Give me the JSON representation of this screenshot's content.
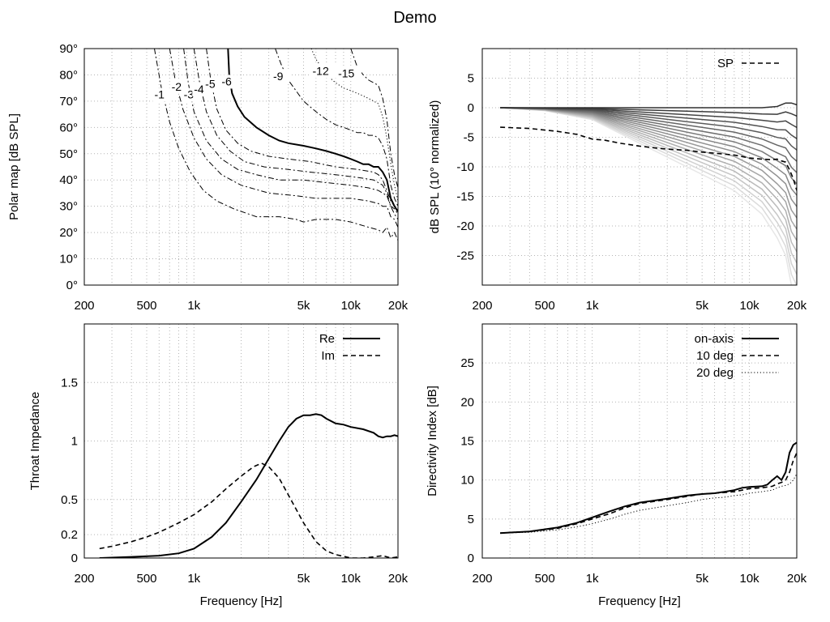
{
  "title": "Demo",
  "chart_data": [
    {
      "type": "line",
      "panel": "polar-map",
      "title": "",
      "xlabel": "",
      "ylabel": "Polar map [dB SPL]",
      "xscale": "log",
      "xlim": [
        200,
        20000
      ],
      "ylim": [
        0,
        90
      ],
      "xtick_values": [
        200,
        500,
        1000,
        5000,
        10000,
        20000
      ],
      "xtick_labels": [
        "200",
        "500",
        "1k",
        "5k",
        "10k",
        "20k"
      ],
      "ytick_values": [
        0,
        10,
        20,
        30,
        40,
        50,
        60,
        70,
        80,
        90
      ],
      "ytick_labels": [
        "0°",
        "10°",
        "20°",
        "30°",
        "40°",
        "50°",
        "60°",
        "70°",
        "80°",
        "90°"
      ],
      "grid": true,
      "series": [
        {
          "name": "-1",
          "style": "dash-dot",
          "x": [
            560,
            620,
            700,
            800,
            950,
            1150,
            1400,
            1800,
            2500,
            3500,
            4500,
            5000,
            6000,
            8000,
            10000,
            13000,
            15000,
            16000,
            17000,
            18000,
            19000,
            20000
          ],
          "y": [
            90,
            75,
            62,
            52,
            43,
            36,
            32,
            29,
            26,
            26,
            25,
            24,
            25,
            25,
            24,
            22,
            21,
            20,
            22,
            18,
            20,
            17
          ]
        },
        {
          "name": "-2",
          "style": "dash-dot",
          "x": [
            700,
            760,
            850,
            1000,
            1200,
            1500,
            2000,
            3000,
            4500,
            6000,
            8000,
            10000,
            13000,
            15000,
            16000,
            17000,
            18000,
            19000,
            20000
          ],
          "y": [
            90,
            78,
            67,
            56,
            48,
            42,
            38,
            35,
            34,
            33,
            33,
            33,
            32,
            31,
            30,
            30,
            26,
            25,
            22
          ]
        },
        {
          "name": "-3",
          "style": "dash-dot",
          "x": [
            860,
            920,
            1000,
            1200,
            1500,
            1900,
            2500,
            3500,
            5000,
            7000,
            10000,
            13000,
            15000,
            16000,
            17000,
            18000,
            19000,
            20000
          ],
          "y": [
            90,
            77,
            66,
            55,
            48,
            44,
            42,
            40,
            40,
            39,
            38,
            37,
            36,
            35,
            34,
            30,
            27,
            25
          ]
        },
        {
          "name": "-4",
          "style": "dash-dot",
          "x": [
            1000,
            1080,
            1200,
            1400,
            1700,
            2100,
            2800,
            4000,
            5500,
            8000,
            11000,
            14000,
            15000,
            16000,
            17000,
            18000,
            19000,
            20000
          ],
          "y": [
            90,
            78,
            66,
            57,
            51,
            47,
            45,
            44,
            43,
            42,
            41,
            40,
            39,
            38,
            35,
            30,
            29,
            27
          ]
        },
        {
          "name": "-5",
          "style": "dash-dot",
          "x": [
            1200,
            1280,
            1400,
            1600,
            1900,
            2300,
            3000,
            4000,
            5500,
            8000,
            11000,
            14000,
            15000,
            16000,
            17000,
            18000,
            19000,
            20000
          ],
          "y": [
            90,
            78,
            67,
            59,
            54,
            51,
            49,
            48,
            47,
            45,
            44,
            43,
            42,
            40,
            36,
            32,
            30,
            28
          ]
        },
        {
          "name": "-6",
          "style": "solid",
          "x": [
            1650,
            1680,
            1750,
            1900,
            2100,
            2500,
            3000,
            3500,
            4000,
            5000,
            6000,
            7000,
            8000,
            9000,
            10000,
            11000,
            12000,
            13000,
            14000,
            15000,
            16000,
            17000,
            18000,
            19000,
            20000
          ],
          "y": [
            90,
            80,
            73,
            68,
            64,
            60,
            57,
            55,
            54,
            53,
            52,
            51,
            50,
            49,
            48,
            47,
            46,
            46,
            45,
            45,
            43,
            40,
            33,
            30,
            28
          ]
        },
        {
          "name": "-9",
          "style": "dash-dot",
          "x": [
            3300,
            3600,
            4000,
            5000,
            6000,
            7000,
            8000,
            9000,
            10000,
            11000,
            12000,
            13000,
            14000,
            15000,
            16000,
            17000,
            18000,
            19000,
            20000
          ],
          "y": [
            90,
            84,
            78,
            70,
            66,
            63,
            61,
            60,
            59,
            58,
            58,
            57,
            57,
            56,
            53,
            48,
            38,
            33,
            30
          ]
        },
        {
          "name": "-12",
          "style": "dotted",
          "x": [
            5600,
            6000,
            7000,
            8000,
            9000,
            10000,
            11000,
            12000,
            13000,
            14000,
            15000,
            16000,
            17000,
            18000,
            19000,
            20000
          ],
          "y": [
            90,
            86,
            80,
            77,
            75,
            74,
            73,
            72,
            71,
            70,
            69,
            64,
            56,
            46,
            38,
            32
          ]
        },
        {
          "name": "-15",
          "style": "dash-dot",
          "x": [
            10000,
            11000,
            12000,
            13000,
            14000,
            15000,
            16000,
            17000,
            18000,
            19000,
            20000
          ],
          "y": [
            90,
            83,
            80,
            78,
            77,
            76,
            71,
            63,
            50,
            42,
            37
          ]
        }
      ],
      "contour_labels": [
        {
          "text": "-1",
          "x": 560,
          "y": 71
        },
        {
          "text": "-2",
          "x": 720,
          "y": 74
        },
        {
          "text": "-3",
          "x": 860,
          "y": 71
        },
        {
          "text": "-4",
          "x": 1000,
          "y": 73
        },
        {
          "text": "-5",
          "x": 1180,
          "y": 75
        },
        {
          "text": "-6",
          "x": 1500,
          "y": 76
        },
        {
          "text": "-9",
          "x": 3200,
          "y": 78
        },
        {
          "text": "-12",
          "x": 5700,
          "y": 80
        },
        {
          "text": "-15",
          "x": 8300,
          "y": 79
        }
      ]
    },
    {
      "type": "line",
      "panel": "normalized-spl",
      "title": "",
      "xlabel": "",
      "ylabel": "dB SPL (10° normalized)",
      "xscale": "log",
      "xlim": [
        200,
        20000
      ],
      "ylim": [
        -30,
        10
      ],
      "xtick_values": [
        200,
        500,
        1000,
        5000,
        10000,
        20000
      ],
      "xtick_labels": [
        "200",
        "500",
        "1k",
        "5k",
        "10k",
        "20k"
      ],
      "ytick_values": [
        5,
        0,
        -5,
        -10,
        -15,
        -20,
        -25
      ],
      "ytick_labels": [
        "5",
        "0",
        "-5",
        "-10",
        "-15",
        "-20",
        "-25"
      ],
      "grid": true,
      "legend": {
        "position": "top-right",
        "entries": [
          "SP"
        ]
      },
      "angle_curves": {
        "count": 18,
        "gray_dark": "#303030",
        "gray_light": "#e6e6e6",
        "x": [
          260,
          500,
          1000,
          2000,
          4000,
          8000,
          12000,
          15000,
          17000,
          18500,
          20000
        ],
        "y_first": [
          0,
          0,
          0,
          0,
          0,
          0,
          0,
          0.2,
          0.8,
          0.8,
          0.5
        ],
        "y_last": [
          0,
          -0.5,
          -2,
          -6,
          -10,
          -14,
          -18,
          -22,
          -25,
          -30,
          -32
        ]
      },
      "series": [
        {
          "name": "SP",
          "style": "dashed",
          "color": "#000000",
          "x": [
            260,
            400,
            600,
            800,
            1000,
            1200,
            1500,
            2000,
            2500,
            3000,
            4000,
            5000,
            6000,
            8000,
            10000,
            12000,
            14000,
            15000,
            16000,
            17000,
            18000,
            19000,
            20000
          ],
          "y": [
            -3.3,
            -3.5,
            -4,
            -4.5,
            -5.3,
            -5.5,
            -6,
            -6.5,
            -6.8,
            -7,
            -7.2,
            -7.5,
            -7.7,
            -8,
            -8.5,
            -8.7,
            -8.8,
            -8.7,
            -9,
            -9.2,
            -10.5,
            -12,
            -14
          ]
        }
      ]
    },
    {
      "type": "line",
      "panel": "throat-impedance",
      "title": "",
      "xlabel": "Frequency [Hz]",
      "ylabel": "Throat Impedance",
      "xscale": "log",
      "xlim": [
        200,
        20000
      ],
      "ylim": [
        0,
        2
      ],
      "xtick_values": [
        200,
        500,
        1000,
        5000,
        10000,
        20000
      ],
      "xtick_labels": [
        "200",
        "500",
        "1k",
        "5k",
        "10k",
        "20k"
      ],
      "ytick_values": [
        0,
        0.2,
        0.5,
        1,
        1.5
      ],
      "ytick_labels": [
        "0",
        "0.2",
        "0.5",
        "1",
        "1.5"
      ],
      "grid": true,
      "legend": {
        "position": "top-right",
        "entries": [
          "Re",
          "Im"
        ]
      },
      "series": [
        {
          "name": "Re",
          "style": "solid",
          "x": [
            250,
            400,
            600,
            800,
            1000,
            1300,
            1600,
            2000,
            2500,
            3000,
            3500,
            4000,
            4500,
            5000,
            5500,
            6000,
            6500,
            7000,
            8000,
            9000,
            10000,
            12000,
            14000,
            15000,
            16000,
            17000,
            18000,
            19000,
            20000
          ],
          "y": [
            0,
            0.01,
            0.02,
            0.04,
            0.08,
            0.18,
            0.3,
            0.48,
            0.67,
            0.85,
            1.0,
            1.12,
            1.19,
            1.22,
            1.22,
            1.23,
            1.22,
            1.19,
            1.15,
            1.14,
            1.12,
            1.1,
            1.07,
            1.04,
            1.03,
            1.04,
            1.04,
            1.05,
            1.04
          ]
        },
        {
          "name": "Im",
          "style": "dashed",
          "x": [
            250,
            300,
            400,
            500,
            600,
            800,
            1000,
            1300,
            1600,
            2000,
            2400,
            2700,
            3000,
            3500,
            4000,
            5000,
            6000,
            7000,
            8000,
            10000,
            12000,
            14000,
            16000,
            18000,
            20000
          ],
          "y": [
            0.08,
            0.1,
            0.14,
            0.18,
            0.22,
            0.3,
            0.37,
            0.48,
            0.59,
            0.7,
            0.78,
            0.81,
            0.78,
            0.68,
            0.54,
            0.3,
            0.14,
            0.06,
            0.03,
            0.0,
            0.0,
            0.01,
            0.02,
            0.0,
            0.01
          ]
        }
      ]
    },
    {
      "type": "line",
      "panel": "directivity-index",
      "title": "",
      "xlabel": "Frequency [Hz]",
      "ylabel": "Directivity Index [dB]",
      "xscale": "log",
      "xlim": [
        200,
        20000
      ],
      "ylim": [
        0,
        30
      ],
      "xtick_values": [
        200,
        500,
        1000,
        5000,
        10000,
        20000
      ],
      "xtick_labels": [
        "200",
        "500",
        "1k",
        "5k",
        "10k",
        "20k"
      ],
      "ytick_values": [
        0,
        5,
        10,
        15,
        20,
        25
      ],
      "ytick_labels": [
        "0",
        "5",
        "10",
        "15",
        "20",
        "25"
      ],
      "grid": true,
      "legend": {
        "position": "top-right",
        "entries": [
          "on-axis",
          "10 deg",
          "20 deg"
        ]
      },
      "series": [
        {
          "name": "on-axis",
          "style": "solid",
          "x": [
            260,
            400,
            600,
            800,
            1000,
            1300,
            1600,
            2000,
            3000,
            4000,
            5000,
            6000,
            7000,
            8000,
            9000,
            10000,
            12000,
            13000,
            14000,
            15000,
            16000,
            17000,
            18000,
            19000,
            20000
          ],
          "y": [
            3.2,
            3.4,
            3.9,
            4.5,
            5.2,
            6,
            6.6,
            7.1,
            7.6,
            8,
            8.2,
            8.3,
            8.5,
            8.7,
            9,
            9.1,
            9.2,
            9.4,
            10,
            10.5,
            10,
            11,
            13.5,
            14.5,
            14.8
          ]
        },
        {
          "name": "10 deg",
          "style": "dashed",
          "x": [
            260,
            400,
            600,
            800,
            1000,
            1300,
            1600,
            2000,
            3000,
            4000,
            5000,
            6000,
            7000,
            8000,
            9000,
            10000,
            12000,
            14000,
            15000,
            16000,
            17000,
            18000,
            19000,
            20000
          ],
          "y": [
            3.2,
            3.4,
            3.8,
            4.4,
            5,
            5.7,
            6.4,
            7,
            7.5,
            7.9,
            8.2,
            8.3,
            8.4,
            8.5,
            8.7,
            8.9,
            9,
            9.2,
            9.5,
            9.7,
            10,
            11,
            12.5,
            13.5
          ]
        },
        {
          "name": "20 deg",
          "style": "dotted",
          "x": [
            260,
            400,
            600,
            800,
            1000,
            1300,
            1600,
            2000,
            3000,
            4000,
            5000,
            6000,
            7000,
            8000,
            9000,
            10000,
            12000,
            14000,
            15000,
            16000,
            17000,
            18000,
            19000,
            20000
          ],
          "y": [
            3.2,
            3.3,
            3.6,
            4,
            4.4,
            5,
            5.6,
            6.1,
            6.7,
            7.1,
            7.5,
            7.7,
            7.8,
            8,
            8.1,
            8.3,
            8.5,
            8.7,
            9,
            9.2,
            9.3,
            9.5,
            10,
            10.8
          ]
        }
      ]
    }
  ]
}
